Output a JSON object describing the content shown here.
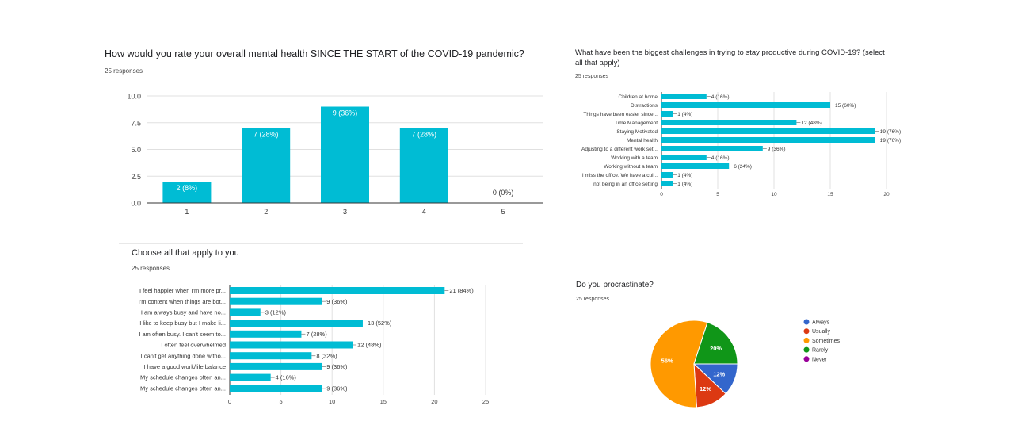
{
  "colors": {
    "bar": "#00bcd4",
    "grid": "#e0e0e0",
    "axis": "#333333"
  },
  "chart_data": [
    {
      "type": "bar",
      "title": "How would you rate your overall mental health SINCE THE START of the COVID-19 pandemic?",
      "responses": "25 responses",
      "categories": [
        "1",
        "2",
        "3",
        "4",
        "5"
      ],
      "values": [
        2,
        7,
        9,
        7,
        0
      ],
      "labels": [
        "2 (8%)",
        "7 (28%)",
        "9 (36%)",
        "7 (28%)",
        "0 (0%)"
      ],
      "yticks": [
        "0.0",
        "2.5",
        "5.0",
        "7.5",
        "10.0"
      ],
      "ylim": [
        0,
        10
      ],
      "xlabel": "",
      "ylabel": ""
    },
    {
      "type": "hbar",
      "title_lines": [
        "What have been the biggest challenges in trying to stay productive during COVID-19? (select",
        "all that apply)"
      ],
      "responses": "25 responses",
      "categories": [
        "Children at home",
        "Distractions",
        "Things have been easier since...",
        "Time Management",
        "Staying Motivated",
        "Mental health",
        "Adjusting to a different work set...",
        "Working with a team",
        "Working without a team",
        "I miss the office. We have a cul...",
        "not being in an office setting"
      ],
      "values": [
        4,
        15,
        1,
        12,
        19,
        19,
        9,
        4,
        6,
        1,
        1
      ],
      "labels": [
        "4 (16%)",
        "15 (60%)",
        "1 (4%)",
        "12 (48%)",
        "19 (76%)",
        "19 (76%)",
        "9 (36%)",
        "4 (16%)",
        "6 (24%)",
        "1 (4%)",
        "1 (4%)"
      ],
      "xticks": [
        "0",
        "5",
        "10",
        "15",
        "20"
      ],
      "xlim": [
        0,
        20
      ]
    },
    {
      "type": "hbar",
      "title": "Choose all that apply to you",
      "responses": "25 responses",
      "categories": [
        "I feel happier when I'm more pr...",
        "I'm content when things are bot...",
        "I am always busy and have no...",
        "I like to keep busy but I make li...",
        "I am often busy. I can't seem to...",
        "I often feel overwhelmed",
        "I can't get anything done witho...",
        "I have a good work/life balance",
        "My schedule changes often an...",
        "My schedule changes often an..."
      ],
      "values": [
        21,
        9,
        3,
        13,
        7,
        12,
        8,
        9,
        4,
        9
      ],
      "labels": [
        "21 (84%)",
        "9 (36%)",
        "3 (12%)",
        "13 (52%)",
        "7 (28%)",
        "12 (48%)",
        "8 (32%)",
        "9 (36%)",
        "4 (16%)",
        "9 (36%)"
      ],
      "xticks": [
        "0",
        "5",
        "10",
        "15",
        "20",
        "25"
      ],
      "xlim": [
        0,
        25
      ]
    },
    {
      "type": "pie",
      "title": "Do you procrastinate?",
      "responses": "25 responses",
      "slices": [
        {
          "name": "Always",
          "value": 3,
          "label": "12%",
          "color": "#3366cc"
        },
        {
          "name": "Usually",
          "value": 3,
          "label": "12%",
          "color": "#dc3912"
        },
        {
          "name": "Sometimes",
          "value": 14,
          "label": "56%",
          "color": "#ff9900"
        },
        {
          "name": "Rarely",
          "value": 5,
          "label": "20%",
          "color": "#109618"
        },
        {
          "name": "Never",
          "value": 0,
          "label": "",
          "color": "#990099"
        }
      ]
    }
  ]
}
